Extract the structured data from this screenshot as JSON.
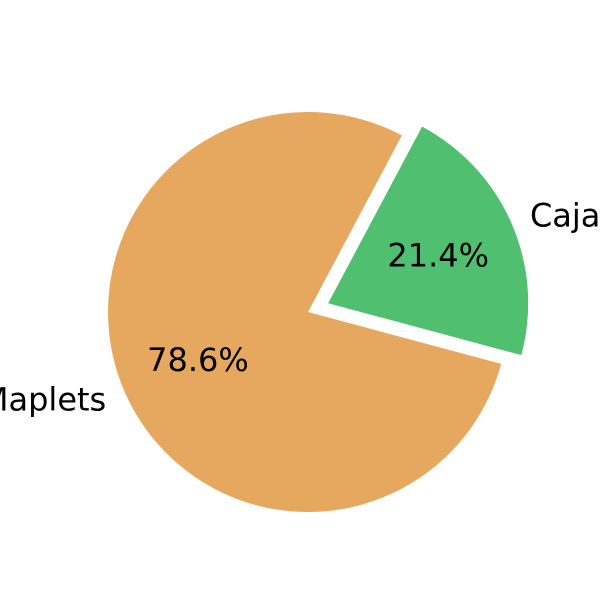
{
  "chart_data": {
    "type": "pie",
    "categories": [
      "Maplets",
      "Cajas"
    ],
    "values": [
      78.6,
      21.4
    ],
    "percent_labels": [
      "78.6%",
      "21.4%"
    ],
    "colors": [
      "#E5A85E",
      "#50C070"
    ],
    "explode": [
      0,
      1
    ],
    "start_angle_deg": 62,
    "direction": "counterclockwise",
    "legend": "none"
  }
}
